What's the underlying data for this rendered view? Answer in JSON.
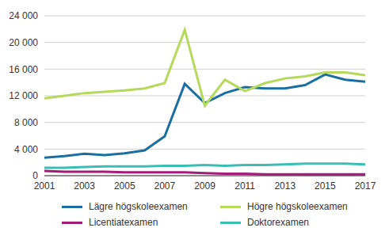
{
  "chart_data": {
    "type": "line",
    "x": [
      2001,
      2002,
      2003,
      2004,
      2005,
      2006,
      2007,
      2008,
      2009,
      2010,
      2011,
      2012,
      2013,
      2014,
      2015,
      2016,
      2017
    ],
    "series": [
      {
        "name": "Lägre högskoleexamen",
        "color": "#1b6fa0",
        "values": [
          2700,
          2950,
          3300,
          3100,
          3350,
          3800,
          5900,
          13800,
          10900,
          12400,
          13300,
          13100,
          13100,
          13600,
          15200,
          14400,
          14100
        ]
      },
      {
        "name": "Högre högskoleexamen",
        "color": "#b5d95a",
        "values": [
          11600,
          12000,
          12400,
          12600,
          12800,
          13100,
          13900,
          21900,
          10500,
          14400,
          12700,
          13900,
          14600,
          14900,
          15500,
          15500,
          15100
        ]
      },
      {
        "name": "Licentiatexamen",
        "color": "#a21d7a",
        "values": [
          700,
          600,
          600,
          600,
          500,
          500,
          500,
          500,
          400,
          300,
          300,
          200,
          200,
          200,
          200,
          200,
          200
        ]
      },
      {
        "name": "Doktorexamen",
        "color": "#3bbdb3",
        "values": [
          1200,
          1200,
          1300,
          1400,
          1400,
          1400,
          1500,
          1500,
          1600,
          1500,
          1600,
          1600,
          1700,
          1800,
          1800,
          1800,
          1700
        ]
      }
    ],
    "xlim": [
      2001,
      2017
    ],
    "xticks": [
      2001,
      2003,
      2005,
      2007,
      2009,
      2011,
      2013,
      2015,
      2017
    ],
    "ylim": [
      0,
      24000
    ],
    "yticks": [
      0,
      {
        "value": 4000,
        "label": "4 000"
      },
      {
        "value": 8000,
        "label": "8 000"
      },
      {
        "value": 12000,
        "label": "12 000"
      },
      {
        "value": 16000,
        "label": "16 000"
      },
      {
        "value": 20000,
        "label": "20 000"
      },
      {
        "value": 24000,
        "label": "24 000"
      }
    ],
    "grid": true,
    "legend": "bottom"
  }
}
